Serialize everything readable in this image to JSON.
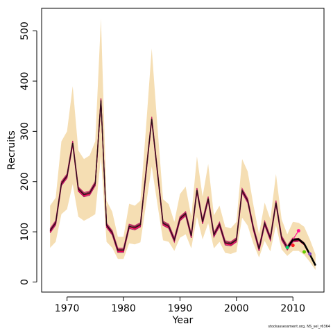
{
  "chart_data": {
    "type": "line",
    "xlabel": "Year",
    "ylabel": "Recruits",
    "xlim": [
      1965.5,
      2015.5
    ],
    "ylim": [
      -20,
      545
    ],
    "x_ticks": [
      1970,
      1980,
      1990,
      2000,
      2010
    ],
    "y_ticks": [
      0,
      100,
      200,
      300,
      400,
      500
    ],
    "grid": false,
    "legend": "none",
    "colors": {
      "band": "#f5deb3",
      "peels": [
        "#e8004b",
        "#7a1c3a",
        "#b0186b",
        "#c22a6b",
        "#f5004f"
      ],
      "terminal_line": "#000000",
      "retro_points": [
        "#ff1493",
        "#ff2020",
        "#66cc00",
        "#7b3fc4",
        "#00cc66"
      ]
    },
    "years": [
      1967,
      1968,
      1969,
      1970,
      1971,
      1972,
      1973,
      1974,
      1975,
      1976,
      1977,
      1978,
      1979,
      1980,
      1981,
      1982,
      1983,
      1984,
      1985,
      1986,
      1987,
      1988,
      1989,
      1990,
      1991,
      1992,
      1993,
      1994,
      1995,
      1996,
      1997,
      1998,
      1999,
      2000,
      2001,
      2002,
      2003,
      2004,
      2005,
      2006,
      2007,
      2008,
      2009,
      2010,
      2011,
      2012,
      2013,
      2014
    ],
    "recruits": [
      102,
      118,
      196,
      211,
      277,
      185,
      174,
      177,
      196,
      362,
      113,
      98,
      63,
      63,
      111,
      108,
      114,
      220,
      325,
      220,
      117,
      111,
      84,
      126,
      136,
      92,
      183,
      120,
      166,
      94,
      115,
      78,
      76,
      84,
      182,
      162,
      107,
      66,
      117,
      87,
      158,
      88,
      68,
      84,
      85,
      76,
      55,
      33
    ],
    "upper": [
      152,
      168,
      280,
      300,
      390,
      262,
      245,
      252,
      280,
      525,
      162,
      140,
      90,
      90,
      156,
      152,
      162,
      310,
      465,
      310,
      165,
      155,
      120,
      175,
      190,
      130,
      250,
      170,
      235,
      133,
      152,
      110,
      107,
      120,
      245,
      220,
      153,
      95,
      158,
      125,
      215,
      125,
      95,
      120,
      118,
      110,
      85,
      55
    ],
    "lower": [
      68,
      80,
      135,
      145,
      195,
      130,
      122,
      128,
      135,
      250,
      80,
      68,
      46,
      46,
      77,
      75,
      79,
      155,
      230,
      155,
      83,
      80,
      62,
      88,
      95,
      67,
      130,
      85,
      117,
      67,
      80,
      58,
      56,
      60,
      128,
      112,
      76,
      49,
      82,
      61,
      113,
      65,
      52,
      62,
      62,
      54,
      40,
      24
    ],
    "retro_points": [
      {
        "year": 2011,
        "value": 102
      },
      {
        "year": 2010,
        "value": 73
      },
      {
        "year": 2012,
        "value": 60
      },
      {
        "year": 2013,
        "value": 56
      },
      {
        "year": 2009,
        "value": 69
      }
    ]
  },
  "credit": "stockassessment.org, NS_sel_r6364"
}
